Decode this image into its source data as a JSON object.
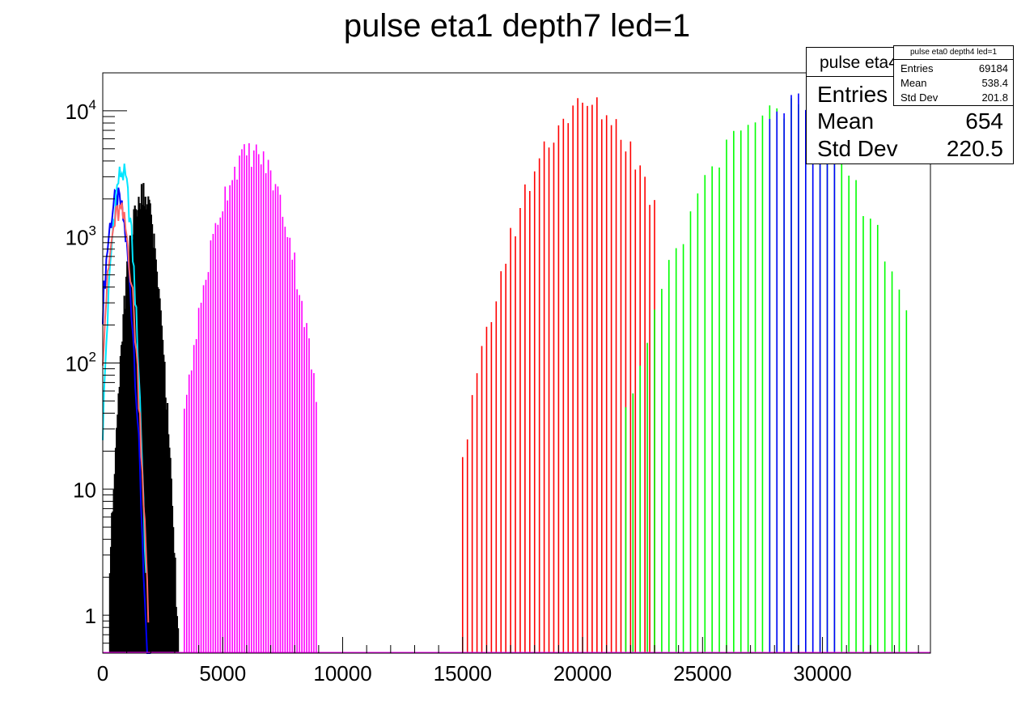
{
  "chart_data": {
    "type": "bar",
    "title": "pulse eta1 depth7 led=1",
    "xlabel": "",
    "ylabel": "",
    "xlim": [
      0,
      34500
    ],
    "ylim": [
      0.5,
      20000
    ],
    "log_y": true,
    "grid": false,
    "x_ticks": [
      0,
      5000,
      10000,
      15000,
      20000,
      25000,
      30000
    ],
    "x_tick_labels": [
      "0",
      "5000",
      "10000",
      "15000",
      "20000",
      "25000",
      "30000"
    ],
    "y_ticks": [
      1,
      10,
      100,
      1000,
      10000
    ],
    "y_tick_labels": [
      "1",
      "10",
      "10^2",
      "10^3",
      "10^4"
    ],
    "series": [
      {
        "color": "#0000ff",
        "style": "line",
        "mean": 600,
        "sigma": 300,
        "peak": 2000,
        "xmin": 0,
        "xmax": 2000,
        "bin": 50
      },
      {
        "color": "#00e5ff",
        "style": "line",
        "mean": 800,
        "sigma": 260,
        "peak": 3300,
        "xmin": 0,
        "xmax": 1800,
        "bin": 50
      },
      {
        "color": "#ff6666",
        "style": "line",
        "mean": 700,
        "sigma": 310,
        "peak": 1600,
        "xmin": 0,
        "xmax": 1900,
        "bin": 50
      },
      {
        "color": "#000000",
        "style": "bars",
        "mean": 1650,
        "sigma": 370,
        "peak": 2200,
        "xmin": 300,
        "xmax": 3200,
        "bin": 40
      },
      {
        "color": "#ff00ff",
        "style": "bars",
        "mean": 6200,
        "sigma": 900,
        "peak": 4700,
        "xmin": 3400,
        "xmax": 8900,
        "bin": 100
      },
      {
        "color": "#ff0000",
        "style": "bars",
        "mean": 20200,
        "sigma": 1450,
        "peak": 11000,
        "xmin": 15000,
        "xmax": 23000,
        "bin": 200
      },
      {
        "color": "#00ff00",
        "style": "bars",
        "mean": 28200,
        "sigma": 1900,
        "peak": 10500,
        "xmin": 21800,
        "xmax": 33500,
        "bin": 300
      },
      {
        "color": "#0000ff",
        "style": "bars",
        "mean": 28600,
        "sigma": 1900,
        "peak": 12000,
        "xmin": 27800,
        "xmax": 30600,
        "bin": 300
      }
    ]
  },
  "stats_main": {
    "header": "pulse eta4",
    "entries_label": "Entries",
    "mean_label": "Mean",
    "mean_value": "654",
    "stddev_label": "Std Dev",
    "stddev_value": "220.5"
  },
  "stats_small": {
    "header": "pulse eta0 depth4 led=1",
    "entries_label": "Entries",
    "entries_value": "69184",
    "mean_label": "Mean",
    "mean_value": "538.4",
    "stddev_label": "Std Dev",
    "stddev_value": "201.8"
  }
}
